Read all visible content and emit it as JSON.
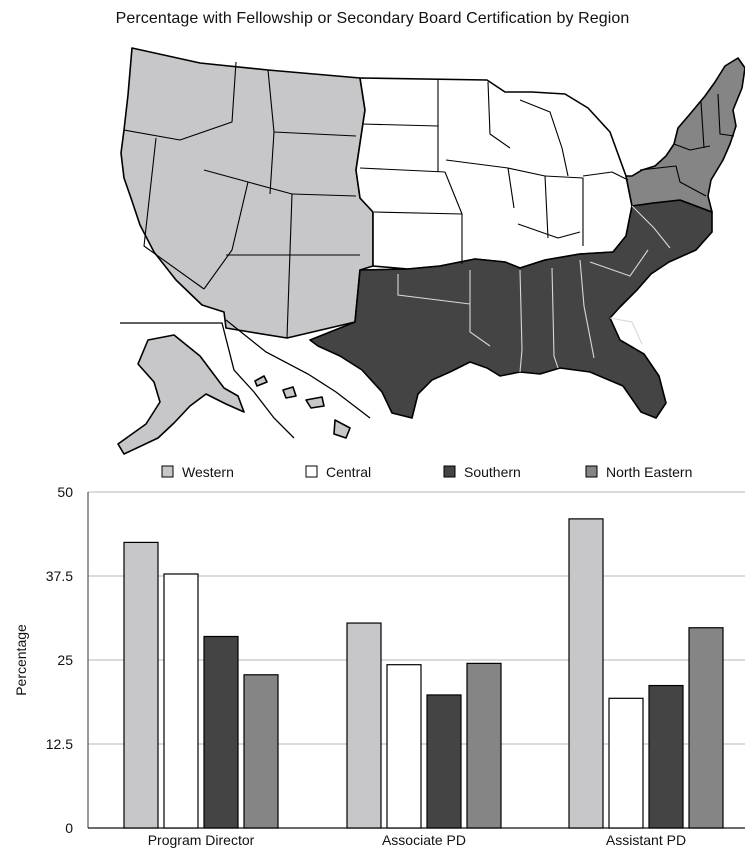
{
  "header": {
    "title": "Percentage with Fellowship or Secondary Board Certification by Region"
  },
  "map": {
    "regions": [
      {
        "name": "Western",
        "color": "#c7c7c9"
      },
      {
        "name": "Central",
        "color": "#ffffff"
      },
      {
        "name": "Southern",
        "color": "#444444"
      },
      {
        "name": "North Eastern",
        "color": "#858585"
      }
    ]
  },
  "chart_data": {
    "type": "bar",
    "categories": [
      "Program Director",
      "Associate PD",
      "Assistant PD"
    ],
    "series": [
      {
        "name": "Western",
        "values": [
          42.5,
          30.5,
          46.0
        ],
        "color": "#c7c7c9"
      },
      {
        "name": "Central",
        "values": [
          37.8,
          24.3,
          19.3
        ],
        "color": "#ffffff"
      },
      {
        "name": "Southern",
        "values": [
          28.5,
          19.8,
          21.2
        ],
        "color": "#444444"
      },
      {
        "name": "North Eastern",
        "values": [
          22.8,
          24.5,
          29.8
        ],
        "color": "#858585"
      }
    ],
    "ylabel": "Percentage",
    "ylim": [
      0,
      50
    ],
    "yticks": [
      0,
      12.5,
      25,
      37.5,
      50
    ],
    "ytick_labels": [
      "0",
      "12.5",
      "25",
      "37.5",
      "50"
    ],
    "legend_position": "top",
    "grid": true
  }
}
